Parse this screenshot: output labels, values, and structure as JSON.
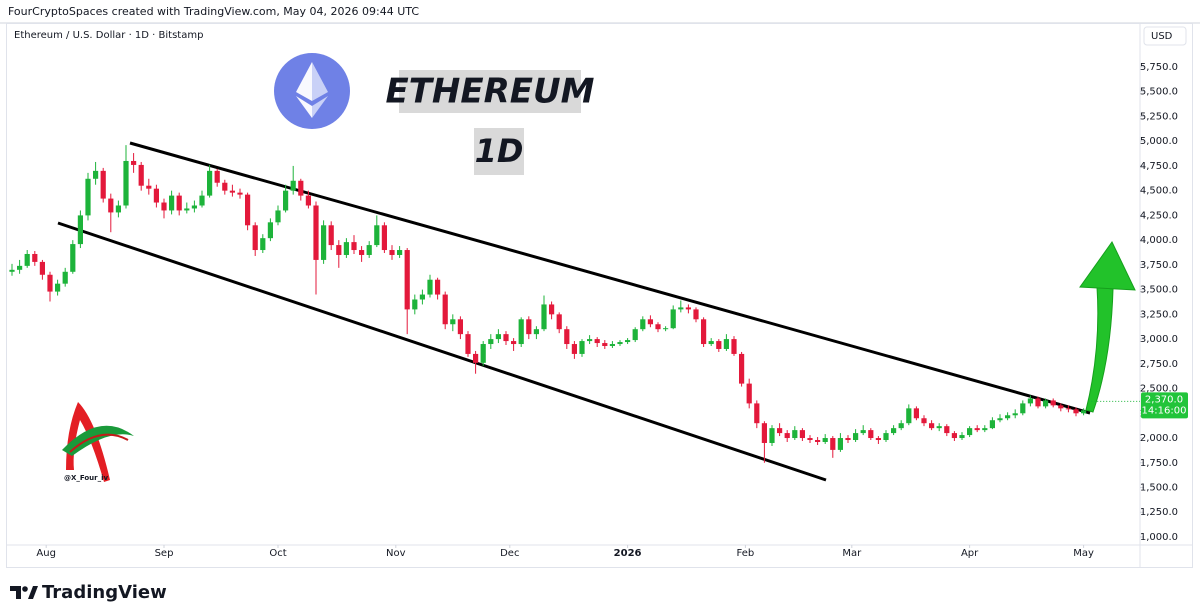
{
  "header": {
    "text": "FourCryptoSpaces created with TradingView.com, May 04, 2026 09:44 UTC",
    "brand": "TradingView"
  },
  "chart_data": {
    "type": "candlestick",
    "subtitle": "Ethereum / U.S. Dollar · 1D · Bitstamp",
    "currency": "USD",
    "annotations": [
      "ETHEREUM",
      "1D"
    ],
    "watermark": "@X_Four_iv",
    "last_price_label": "2,370.0",
    "countdown": "14:16:00",
    "up_color": "#1db33a",
    "down_color": "#e3193b",
    "grid": false,
    "ylim": [
      920,
      5970
    ],
    "yticks": [
      {
        "value": 1000,
        "label": "1,000.0"
      },
      {
        "value": 1250,
        "label": "1,250.0"
      },
      {
        "value": 1500,
        "label": "1,500.0"
      },
      {
        "value": 1750,
        "label": "1,750.0"
      },
      {
        "value": 2000,
        "label": "2,000.0"
      },
      {
        "value": 2250,
        "label": "2,250.0"
      },
      {
        "value": 2500,
        "label": "2,500.0"
      },
      {
        "value": 2750,
        "label": "2,750.0"
      },
      {
        "value": 3000,
        "label": "3,000.0"
      },
      {
        "value": 3250,
        "label": "3,250.0"
      },
      {
        "value": 3500,
        "label": "3,500.0"
      },
      {
        "value": 3750,
        "label": "3,750.0"
      },
      {
        "value": 4000,
        "label": "4,000.0"
      },
      {
        "value": 4250,
        "label": "4,250.0"
      },
      {
        "value": 4500,
        "label": "4,500.0"
      },
      {
        "value": 4750,
        "label": "4,750.0"
      },
      {
        "value": 5000,
        "label": "5,000.0"
      },
      {
        "value": 5250,
        "label": "5,250.0"
      },
      {
        "value": 5500,
        "label": "5,500.0"
      },
      {
        "value": 5750,
        "label": "5,750.0"
      }
    ],
    "xticks": [
      {
        "value": 4.5,
        "label": "Aug"
      },
      {
        "value": 20,
        "label": "Sep"
      },
      {
        "value": 35,
        "label": "Oct"
      },
      {
        "value": 50.5,
        "label": "Nov"
      },
      {
        "value": 65.5,
        "label": "Dec"
      },
      {
        "value": 81,
        "label": "2026"
      },
      {
        "value": 96.5,
        "label": "Feb"
      },
      {
        "value": 110.5,
        "label": "Mar"
      },
      {
        "value": 126,
        "label": "Apr"
      },
      {
        "value": 141,
        "label": "May"
      }
    ],
    "ohlc": [
      [
        3680,
        3760,
        3640,
        3700
      ],
      [
        3700,
        3800,
        3660,
        3740
      ],
      [
        3740,
        3900,
        3720,
        3860
      ],
      [
        3860,
        3890,
        3740,
        3780
      ],
      [
        3780,
        3800,
        3600,
        3650
      ],
      [
        3650,
        3680,
        3380,
        3480
      ],
      [
        3480,
        3600,
        3440,
        3560
      ],
      [
        3560,
        3720,
        3530,
        3680
      ],
      [
        3680,
        4000,
        3660,
        3960
      ],
      [
        3960,
        4300,
        3920,
        4250
      ],
      [
        4250,
        4680,
        4200,
        4620
      ],
      [
        4620,
        4790,
        4560,
        4700
      ],
      [
        4700,
        4730,
        4380,
        4420
      ],
      [
        4420,
        4470,
        4080,
        4280
      ],
      [
        4280,
        4400,
        4230,
        4350
      ],
      [
        4350,
        4960,
        4320,
        4800
      ],
      [
        4800,
        4880,
        4680,
        4760
      ],
      [
        4760,
        4790,
        4500,
        4550
      ],
      [
        4550,
        4620,
        4460,
        4520
      ],
      [
        4520,
        4560,
        4330,
        4380
      ],
      [
        4380,
        4420,
        4220,
        4300
      ],
      [
        4300,
        4500,
        4260,
        4450
      ],
      [
        4450,
        4480,
        4250,
        4300
      ],
      [
        4300,
        4380,
        4270,
        4320
      ],
      [
        4320,
        4400,
        4280,
        4350
      ],
      [
        4350,
        4500,
        4330,
        4450
      ],
      [
        4450,
        4760,
        4430,
        4700
      ],
      [
        4700,
        4720,
        4540,
        4580
      ],
      [
        4580,
        4610,
        4460,
        4500
      ],
      [
        4500,
        4560,
        4440,
        4480
      ],
      [
        4480,
        4520,
        4420,
        4460
      ],
      [
        4460,
        4480,
        4100,
        4150
      ],
      [
        4150,
        4180,
        3840,
        3900
      ],
      [
        3900,
        4060,
        3870,
        4020
      ],
      [
        4020,
        4220,
        3990,
        4180
      ],
      [
        4180,
        4350,
        4150,
        4300
      ],
      [
        4300,
        4560,
        4280,
        4500
      ],
      [
        4500,
        4750,
        4460,
        4600
      ],
      [
        4600,
        4620,
        4400,
        4450
      ],
      [
        4450,
        4500,
        4320,
        4350
      ],
      [
        4350,
        4390,
        3450,
        3800
      ],
      [
        3800,
        4200,
        3760,
        4150
      ],
      [
        4150,
        4190,
        3900,
        3950
      ],
      [
        3950,
        4000,
        3720,
        3850
      ],
      [
        3850,
        4020,
        3820,
        3980
      ],
      [
        3980,
        4050,
        3860,
        3900
      ],
      [
        3900,
        3940,
        3780,
        3850
      ],
      [
        3850,
        3990,
        3820,
        3950
      ],
      [
        3950,
        4250,
        3930,
        4150
      ],
      [
        4150,
        4180,
        3870,
        3900
      ],
      [
        3900,
        3950,
        3800,
        3850
      ],
      [
        3850,
        3940,
        3820,
        3900
      ],
      [
        3900,
        3920,
        3050,
        3300
      ],
      [
        3300,
        3450,
        3250,
        3400
      ],
      [
        3400,
        3500,
        3350,
        3450
      ],
      [
        3450,
        3650,
        3420,
        3600
      ],
      [
        3600,
        3620,
        3400,
        3450
      ],
      [
        3450,
        3480,
        3100,
        3150
      ],
      [
        3150,
        3250,
        3080,
        3200
      ],
      [
        3200,
        3230,
        3000,
        3050
      ],
      [
        3050,
        3080,
        2820,
        2850
      ],
      [
        2850,
        2880,
        2650,
        2760
      ],
      [
        2760,
        2980,
        2730,
        2950
      ],
      [
        2950,
        3050,
        2900,
        3000
      ],
      [
        3000,
        3100,
        2960,
        3050
      ],
      [
        3050,
        3080,
        2940,
        2980
      ],
      [
        2980,
        3010,
        2880,
        2950
      ],
      [
        2950,
        3220,
        2920,
        3200
      ],
      [
        3200,
        3230,
        3000,
        3050
      ],
      [
        3050,
        3130,
        3000,
        3100
      ],
      [
        3100,
        3440,
        3080,
        3350
      ],
      [
        3350,
        3380,
        3200,
        3250
      ],
      [
        3250,
        3270,
        3060,
        3100
      ],
      [
        3100,
        3130,
        2900,
        2950
      ],
      [
        2950,
        2980,
        2800,
        2850
      ],
      [
        2850,
        3000,
        2820,
        2980
      ],
      [
        2980,
        3040,
        2950,
        3000
      ],
      [
        3000,
        3020,
        2920,
        2960
      ],
      [
        2960,
        2990,
        2900,
        2930
      ],
      [
        2930,
        2980,
        2910,
        2950
      ],
      [
        2950,
        2990,
        2930,
        2970
      ],
      [
        2970,
        3010,
        2950,
        2990
      ],
      [
        2990,
        3120,
        2970,
        3100
      ],
      [
        3100,
        3230,
        3080,
        3200
      ],
      [
        3200,
        3240,
        3120,
        3150
      ],
      [
        3150,
        3170,
        3070,
        3100
      ],
      [
        3100,
        3130,
        3080,
        3110
      ],
      [
        3110,
        3340,
        3100,
        3300
      ],
      [
        3300,
        3390,
        3270,
        3320
      ],
      [
        3320,
        3350,
        3260,
        3300
      ],
      [
        3300,
        3320,
        3170,
        3200
      ],
      [
        3200,
        3220,
        2920,
        2950
      ],
      [
        2950,
        3010,
        2930,
        2980
      ],
      [
        2980,
        3000,
        2870,
        2900
      ],
      [
        2900,
        3050,
        2880,
        3000
      ],
      [
        3000,
        3030,
        2830,
        2850
      ],
      [
        2850,
        2870,
        2520,
        2550
      ],
      [
        2550,
        2600,
        2300,
        2350
      ],
      [
        2350,
        2380,
        2100,
        2150
      ],
      [
        2150,
        2170,
        1750,
        1950
      ],
      [
        1950,
        2130,
        1920,
        2100
      ],
      [
        2100,
        2150,
        2020,
        2050
      ],
      [
        2050,
        2080,
        1960,
        2000
      ],
      [
        2000,
        2120,
        1980,
        2080
      ],
      [
        2080,
        2100,
        1970,
        2000
      ],
      [
        2000,
        2030,
        1950,
        1980
      ],
      [
        1980,
        2010,
        1930,
        1960
      ],
      [
        1960,
        2040,
        1940,
        2000
      ],
      [
        2000,
        2020,
        1800,
        1880
      ],
      [
        1880,
        2050,
        1860,
        2000
      ],
      [
        2000,
        2030,
        1950,
        1980
      ],
      [
        1980,
        2090,
        1960,
        2050
      ],
      [
        2050,
        2130,
        2030,
        2080
      ],
      [
        2080,
        2100,
        1980,
        2000
      ],
      [
        2000,
        2020,
        1940,
        1980
      ],
      [
        1980,
        2080,
        1960,
        2050
      ],
      [
        2050,
        2130,
        2030,
        2100
      ],
      [
        2100,
        2180,
        2080,
        2150
      ],
      [
        2150,
        2340,
        2130,
        2300
      ],
      [
        2300,
        2320,
        2180,
        2200
      ],
      [
        2200,
        2230,
        2120,
        2150
      ],
      [
        2150,
        2180,
        2080,
        2100
      ],
      [
        2100,
        2150,
        2070,
        2120
      ],
      [
        2120,
        2140,
        2020,
        2050
      ],
      [
        2050,
        2070,
        1970,
        2000
      ],
      [
        2000,
        2060,
        1980,
        2030
      ],
      [
        2030,
        2120,
        2010,
        2100
      ],
      [
        2100,
        2130,
        2060,
        2080
      ],
      [
        2080,
        2130,
        2060,
        2100
      ],
      [
        2100,
        2210,
        2090,
        2180
      ],
      [
        2180,
        2240,
        2160,
        2200
      ],
      [
        2200,
        2260,
        2180,
        2230
      ],
      [
        2230,
        2290,
        2200,
        2250
      ],
      [
        2250,
        2380,
        2230,
        2350
      ],
      [
        2350,
        2430,
        2320,
        2400
      ],
      [
        2400,
        2420,
        2300,
        2320
      ],
      [
        2320,
        2400,
        2300,
        2380
      ],
      [
        2380,
        2400,
        2310,
        2330
      ],
      [
        2330,
        2350,
        2270,
        2300
      ],
      [
        2300,
        2330,
        2260,
        2290
      ],
      [
        2290,
        2310,
        2220,
        2250
      ],
      [
        2250,
        2300,
        2230,
        2280
      ],
      [
        2280,
        2390,
        2270,
        2370
      ]
    ]
  }
}
